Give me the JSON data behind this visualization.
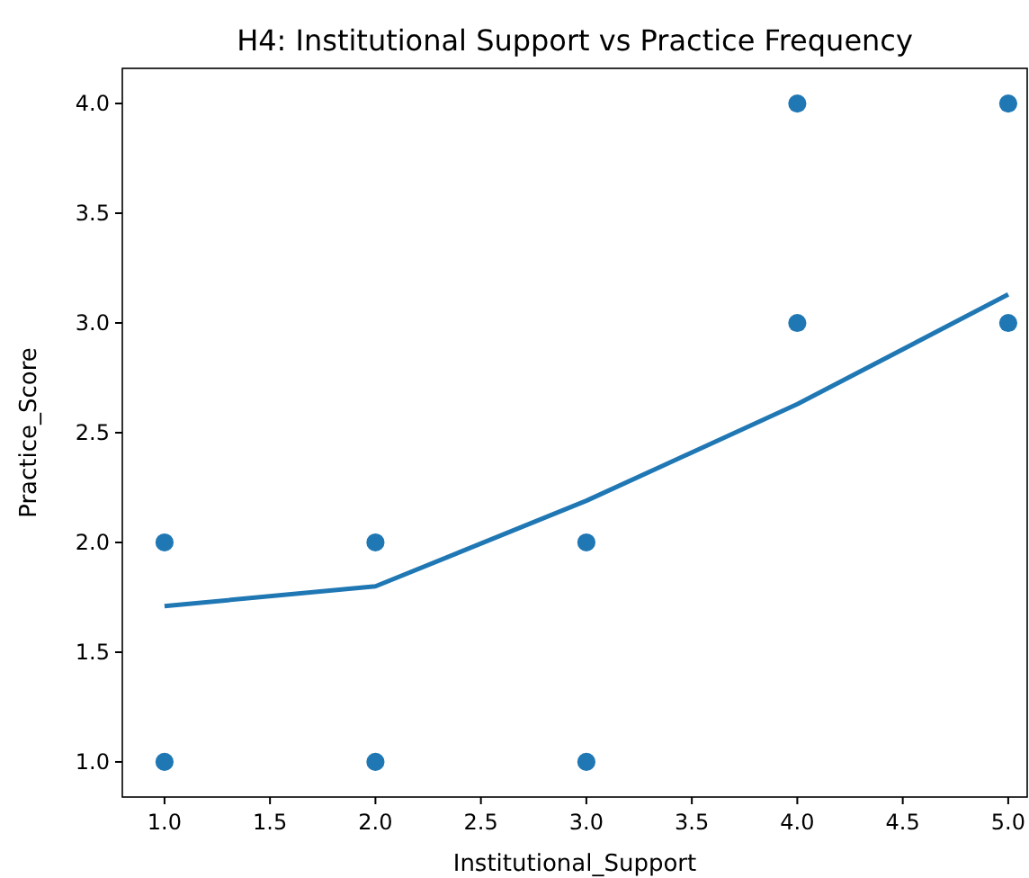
{
  "chart_data": {
    "type": "scatter",
    "title": "H4: Institutional Support vs Practice Frequency",
    "xlabel": "Institutional_Support",
    "ylabel": "Practice_Score",
    "xlim": [
      0.8,
      5.09
    ],
    "xticks": [
      {
        "value": 1,
        "label": "1.0"
      },
      {
        "value": 1.5,
        "label": "1.5"
      },
      {
        "value": 2,
        "label": "2.0"
      },
      {
        "value": 2.5,
        "label": "2.5"
      },
      {
        "value": 3,
        "label": "3.0"
      },
      {
        "value": 3.5,
        "label": "3.5"
      },
      {
        "value": 4,
        "label": "4.0"
      },
      {
        "value": 4.5,
        "label": "4.5"
      },
      {
        "value": 5,
        "label": "5.0"
      }
    ],
    "ylim": [
      0.84,
      4.16
    ],
    "yticks": [
      {
        "value": 1,
        "label": "1.0"
      },
      {
        "value": 1.5,
        "label": "1.5"
      },
      {
        "value": 2,
        "label": "2.0"
      },
      {
        "value": 2.5,
        "label": "2.5"
      },
      {
        "value": 3,
        "label": "3.0"
      },
      {
        "value": 3.5,
        "label": "3.5"
      },
      {
        "value": 4,
        "label": "4.0"
      }
    ],
    "grid": false,
    "series": [
      {
        "marker": "circle",
        "color": "#1f77b4",
        "x": [
          1,
          1,
          2,
          2,
          3,
          3,
          4,
          4,
          5,
          5
        ],
        "values": [
          2,
          1,
          2,
          1,
          2,
          1,
          4,
          3,
          4,
          3
        ]
      },
      {
        "type": "line",
        "color": "#1f77b4",
        "x": [
          1,
          2,
          3,
          4,
          5
        ],
        "values": [
          1.71,
          1.8,
          2.19,
          2.63,
          3.13
        ],
        "line_style": "solid",
        "marker": "none"
      }
    ]
  }
}
